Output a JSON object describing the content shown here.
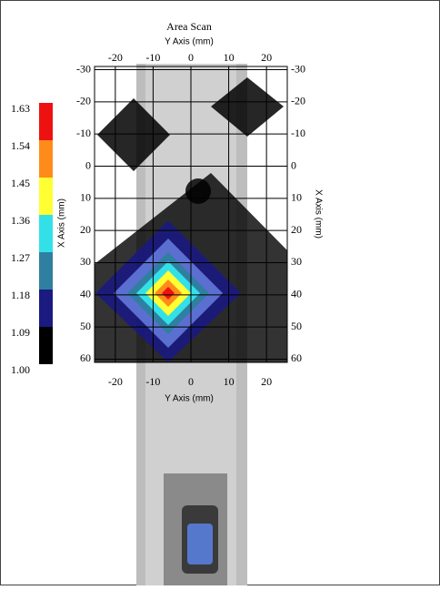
{
  "chart_data": {
    "type": "heatmap",
    "title": "Area Scan",
    "x_label_top": "Y Axis (mm)",
    "x_label_bottom": "Y Axis (mm)",
    "y_label_left": "X Axis (mm)",
    "y_label_right": "X Axis (mm)",
    "xlim": [
      -25.5,
      25.5
    ],
    "xticks": [
      -20,
      -10,
      0,
      10,
      20
    ],
    "ylim": [
      -31,
      61
    ],
    "yticks": [
      -30,
      -20,
      -10,
      0,
      10,
      20,
      30,
      40,
      50,
      60
    ],
    "grid": true,
    "scale_levels": [
      {
        "value": 1,
        "label": "1.00"
      },
      1.09,
      1.18,
      1.27,
      1.36,
      1.45,
      1.54,
      1.63
    ],
    "scale_colors": [
      "#000000",
      "#1a1a80",
      "#2f7fa0",
      "#33e0e8",
      "#ffff33",
      "#ff8c1a",
      "#ee1111"
    ]
  }
}
